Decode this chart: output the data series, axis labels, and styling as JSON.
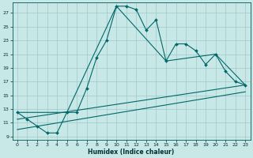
{
  "title": "",
  "xlabel": "Humidex (Indice chaleur)",
  "background_color": "#c8e8e8",
  "grid_color": "#a0c8c8",
  "line_color": "#006868",
  "xlim": [
    -0.5,
    23.5
  ],
  "ylim": [
    8.5,
    28.5
  ],
  "xticks": [
    0,
    1,
    2,
    3,
    4,
    5,
    6,
    7,
    8,
    9,
    10,
    11,
    12,
    13,
    14,
    15,
    16,
    17,
    18,
    19,
    20,
    21,
    22,
    23
  ],
  "yticks": [
    9,
    11,
    13,
    15,
    17,
    19,
    21,
    23,
    25,
    27
  ],
  "series1_x": [
    0,
    1,
    2,
    3,
    4,
    5,
    6,
    7,
    8,
    9,
    10,
    11,
    12,
    13,
    14,
    15,
    16,
    17,
    18,
    19,
    20,
    21,
    22,
    23
  ],
  "series1_y": [
    12.5,
    11.5,
    10.5,
    9.5,
    9.5,
    12.5,
    12.5,
    16.0,
    20.5,
    23.0,
    28.0,
    28.0,
    27.5,
    24.5,
    26.0,
    20.0,
    22.5,
    22.5,
    21.5,
    19.5,
    21.0,
    18.5,
    17.0,
    16.5
  ],
  "series2_x": [
    0,
    5,
    10,
    15,
    20,
    23
  ],
  "series2_y": [
    12.5,
    12.5,
    28.0,
    20.0,
    21.0,
    16.5
  ],
  "series3_x": [
    0,
    23
  ],
  "series3_y": [
    11.5,
    16.5
  ],
  "series4_x": [
    0,
    23
  ],
  "series4_y": [
    10.0,
    15.5
  ]
}
